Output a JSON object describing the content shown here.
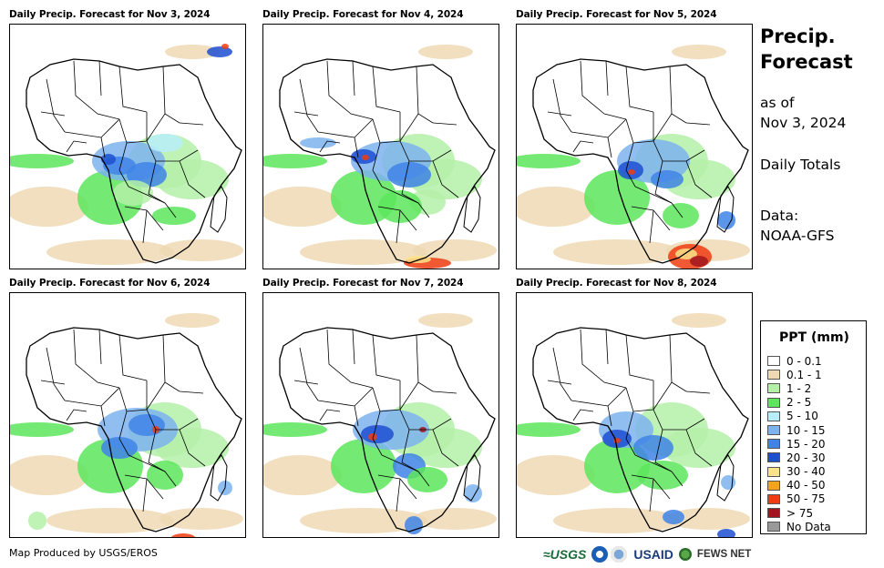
{
  "panels": [
    {
      "title": "Daily Precip. Forecast for Nov 3, 2024"
    },
    {
      "title": "Daily Precip. Forecast for Nov 4, 2024"
    },
    {
      "title": "Daily Precip. Forecast for Nov 5, 2024"
    },
    {
      "title": "Daily Precip. Forecast for Nov 6, 2024"
    },
    {
      "title": "Daily Precip. Forecast for Nov 7, 2024"
    },
    {
      "title": "Daily Precip. Forecast for Nov 8, 2024"
    }
  ],
  "side": {
    "title_line1": "Precip.",
    "title_line2": "Forecast",
    "asof_line1": "as of",
    "asof_line2": "Nov 3, 2024",
    "totals": "Daily Totals",
    "data_line1": "Data:",
    "data_line2": "NOAA-GFS"
  },
  "legend": {
    "title": "PPT (mm)",
    "items": [
      {
        "label": "0 - 0.1",
        "color": "#ffffff"
      },
      {
        "label": "0.1 - 1",
        "color": "#efd9b4"
      },
      {
        "label": "1 - 2",
        "color": "#b4f0a8"
      },
      {
        "label": "2 - 5",
        "color": "#5ce65c"
      },
      {
        "label": "5 - 10",
        "color": "#b8eefa"
      },
      {
        "label": "10 - 15",
        "color": "#7db3ef"
      },
      {
        "label": "15 - 20",
        "color": "#3f84e6"
      },
      {
        "label": "20 - 30",
        "color": "#1d4fd1"
      },
      {
        "label": "30 - 40",
        "color": "#fbe38a"
      },
      {
        "label": "40 - 50",
        "color": "#f5a21e"
      },
      {
        "label": "50 - 75",
        "color": "#ef3c12"
      },
      {
        "label": "> 75",
        "color": "#a1161e"
      },
      {
        "label": "No Data",
        "color": "#999999"
      }
    ]
  },
  "credit": "Map Produced by USGS/EROS",
  "logos": {
    "usgs": "≈USGS",
    "usaid": "USAID",
    "fews": "FEWS NET"
  }
}
